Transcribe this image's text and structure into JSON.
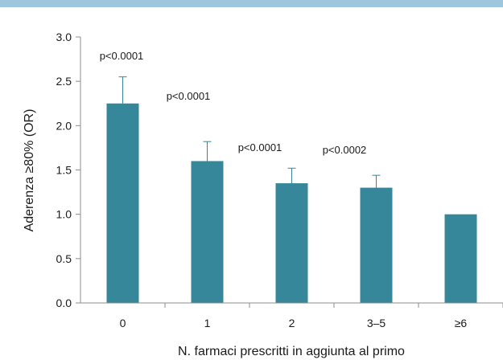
{
  "chart_data": {
    "type": "bar",
    "title": "",
    "xlabel": "N. farmaci prescritti in aggiunta al primo",
    "ylabel": "Aderenza ≥80% (OR)",
    "categories": [
      "0",
      "1",
      "2",
      "3–5",
      "≥6"
    ],
    "values": [
      2.25,
      1.6,
      1.35,
      1.3,
      1.0
    ],
    "error_upper": [
      2.55,
      1.82,
      1.52,
      1.44,
      null
    ],
    "annotations": [
      "p<0.0001",
      "p<0.0001",
      "p<0.0001",
      "p<0.0002",
      ""
    ],
    "ylim": [
      0,
      3.0
    ],
    "yticks": [
      "0.0",
      "0.5",
      "1.0",
      "1.5",
      "2.0",
      "2.5",
      "3.0"
    ],
    "grid": false,
    "legend": "none",
    "colors": {
      "bar": "#36879a",
      "axis": "#8c8c8c",
      "header_bar": "#9ec6dc"
    }
  }
}
